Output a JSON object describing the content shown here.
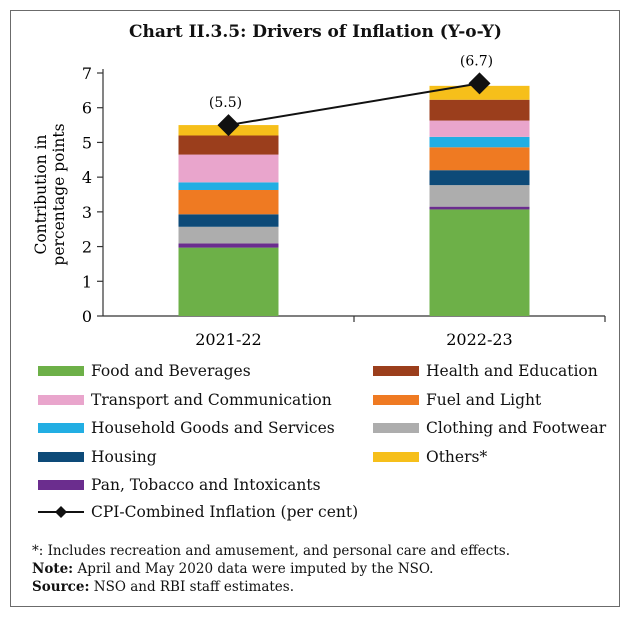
{
  "title": "Chart II.3.5: Drivers of Inflation (Y-o-Y)",
  "chart_data": {
    "type": "bar",
    "stacked": true,
    "categories": [
      "2021-22",
      "2022-23"
    ],
    "ylabel": "Contribution in percentage points",
    "ylabel_lines": [
      "Contribution in",
      "percentage points"
    ],
    "ylim": [
      0,
      7
    ],
    "yticks": [
      0,
      1,
      2,
      3,
      4,
      5,
      6,
      7
    ],
    "series": [
      {
        "name": "Food and Beverages",
        "color": "#6db048",
        "values": [
          1.97,
          3.07
        ]
      },
      {
        "name": "Pan, Tobacco and Intoxicants",
        "color": "#6b2d8e",
        "values": [
          0.12,
          0.08
        ]
      },
      {
        "name": "Clothing and Footwear",
        "color": "#adadad",
        "values": [
          0.48,
          0.62
        ]
      },
      {
        "name": "Housing",
        "color": "#0d4a78",
        "values": [
          0.36,
          0.43
        ]
      },
      {
        "name": "Fuel and Light",
        "color": "#ef7a22",
        "values": [
          0.7,
          0.66
        ]
      },
      {
        "name": "Household Goods and Services",
        "color": "#22aee3",
        "values": [
          0.22,
          0.3
        ]
      },
      {
        "name": "Transport and Communication",
        "color": "#e9a5cc",
        "values": [
          0.8,
          0.47
        ]
      },
      {
        "name": "Health and Education",
        "color": "#9b3e1c",
        "values": [
          0.55,
          0.6
        ]
      },
      {
        "name": "Others*",
        "color": "#f6bf1a",
        "values": [
          0.3,
          0.4
        ]
      }
    ],
    "line": {
      "name": "CPI-Combined Inflation (per cent)",
      "values": [
        5.5,
        6.7
      ],
      "labels": [
        "(5.5)",
        "(6.7)"
      ]
    }
  },
  "legend_left": [
    "Food and Beverages",
    "Transport and Communication",
    "Household Goods and Services",
    "Housing",
    "Pan, Tobacco and Intoxicants"
  ],
  "legend_right": [
    "Health and Education",
    "Fuel and Light",
    "Clothing and Footwear",
    "Others*"
  ],
  "notes": {
    "footnote": "*: Includes recreation and amusement, and personal care and effects.",
    "note_label": "Note:",
    "note_text": " April and May 2020 data were imputed by the NSO.",
    "source_label": "Source:",
    "source_text": " NSO and RBI staff estimates."
  }
}
